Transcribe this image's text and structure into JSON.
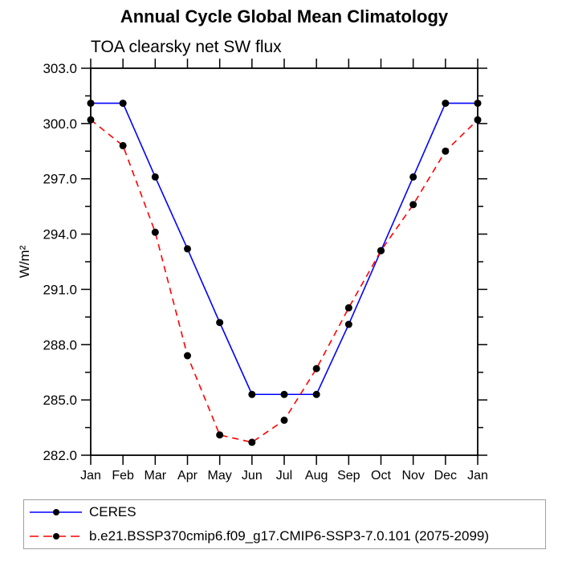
{
  "title": "Annual Cycle Global Mean Climatology",
  "subtitle": "TOA clearsky net SW flux",
  "chart_data": {
    "type": "line",
    "title": "Annual Cycle Global Mean Climatology",
    "subtitle": "TOA clearsky net SW flux",
    "xlabel": "",
    "ylabel": "W/m²",
    "categories": [
      "Jan",
      "Feb",
      "Mar",
      "Apr",
      "May",
      "Jun",
      "Jul",
      "Aug",
      "Sep",
      "Oct",
      "Nov",
      "Dec",
      "Jan"
    ],
    "ylim": [
      282.0,
      303.0
    ],
    "yticks": [
      303.0,
      300.0,
      297.0,
      294.0,
      291.0,
      288.0,
      285.0,
      282.0
    ],
    "ytick_minor_interval": 1.5,
    "grid": false,
    "legend_position": "bottom",
    "frame_color": "#000000",
    "marker_color": "#000000",
    "series": [
      {
        "name": "CERES",
        "color": "#0000ff",
        "style": "solid",
        "marker": "black-dot",
        "values": [
          301.1,
          301.1,
          297.1,
          293.2,
          289.2,
          285.3,
          285.3,
          285.3,
          289.1,
          293.1,
          297.1,
          301.1,
          301.1
        ]
      },
      {
        "name": "b.e21.BSSP370cmip6.f09_g17.CMIP6-SSP3-7.0.101 (2075-2099)",
        "color": "#ff0000",
        "style": "dashed",
        "marker": "black-dot",
        "values": [
          300.2,
          298.8,
          294.1,
          287.4,
          283.1,
          282.7,
          283.9,
          286.7,
          290.0,
          293.1,
          295.6,
          298.5,
          300.2
        ]
      }
    ]
  },
  "legend": {
    "border_color": "#a0a0a0"
  }
}
